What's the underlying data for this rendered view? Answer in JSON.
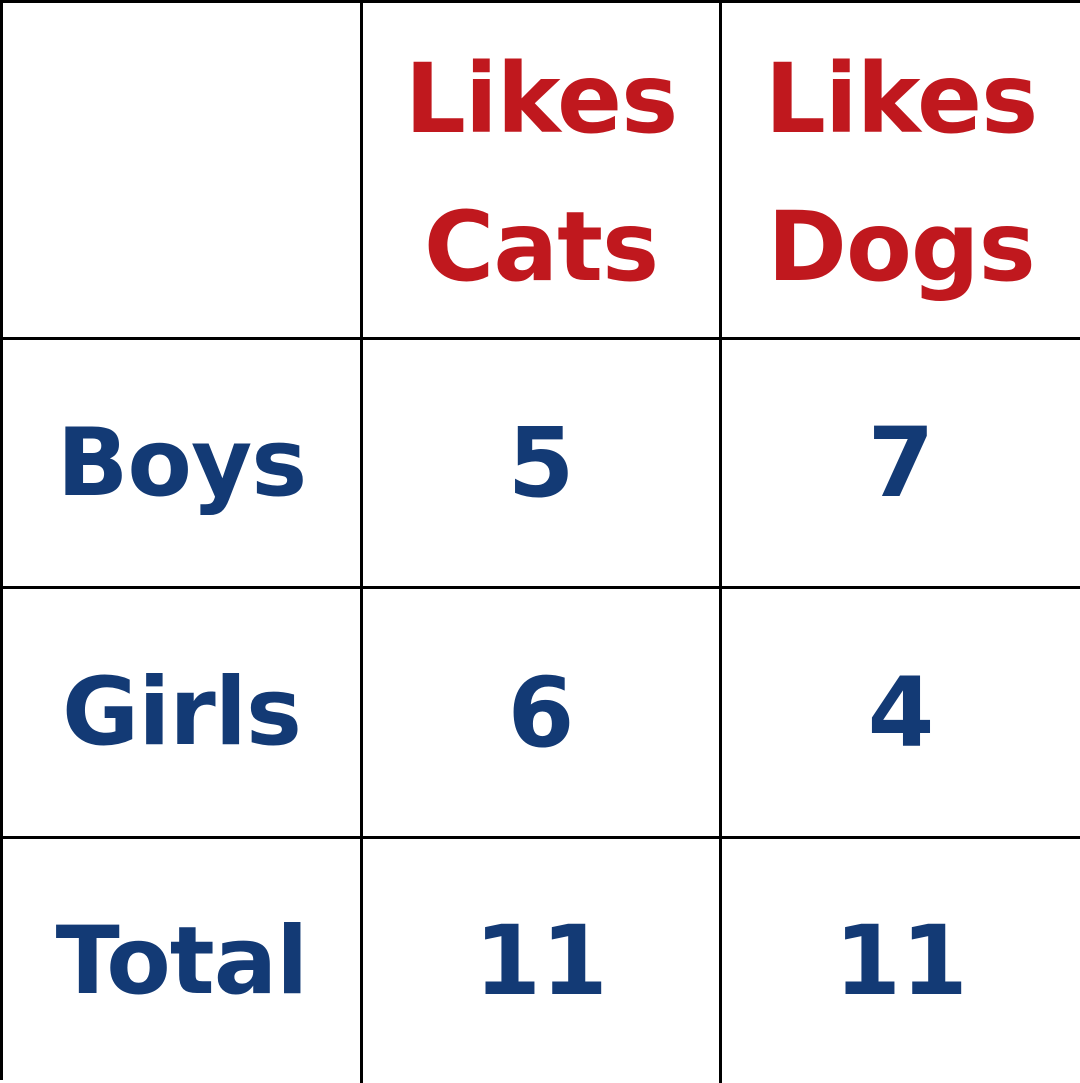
{
  "chart_data": {
    "type": "table",
    "columns": [
      {
        "line1": "Likes",
        "line2": "Cats"
      },
      {
        "line1": "Likes",
        "line2": "Dogs"
      }
    ],
    "rows": [
      {
        "label": "Boys",
        "values": [
          "5",
          "7"
        ]
      },
      {
        "label": "Girls",
        "values": [
          "6",
          "4"
        ]
      },
      {
        "label": "Total",
        "values": [
          "11",
          "11"
        ]
      }
    ]
  },
  "colors": {
    "header": "#c0181e",
    "body": "#133a75",
    "grid": "#000000"
  }
}
